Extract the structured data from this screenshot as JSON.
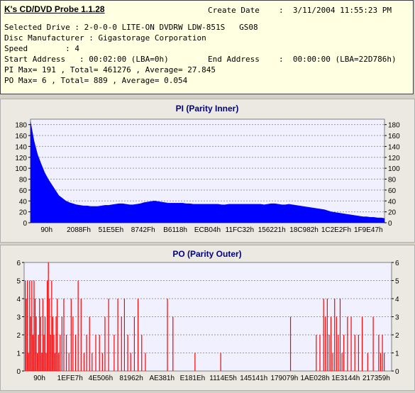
{
  "header": {
    "app_title": "K's CD/DVD Probe 1.1.28",
    "create_date_label": "Create Date",
    "create_date_value": ":  3/11/2004 11:55:23 PM",
    "line_drive": "Selected Drive : 2-0-0-0 LITE-ON DVDRW LDW-851S   GS08",
    "line_manufacturer": "Disc Manufacturer : Gigastorage Corporation",
    "line_speed": "Speed        : 4",
    "line_start": "Start Address   : 00:02:00 (LBA=0h)",
    "end_address_label": "End Address",
    "end_address_value": ":  00:00:00 (LBA=22D786h)",
    "line_pi": "PI Max= 191 , Total= 461276 , Average= 27.845",
    "line_po": "PO Max= 6 , Total= 889 , Average= 0.054"
  },
  "colors": {
    "pi_fill": "#0000ff",
    "po_fill": "#ff0000",
    "title": "#000080",
    "plot_bg": "#f0f0ff"
  },
  "chart_data": [
    {
      "type": "area",
      "title": "PI (Parity Inner)",
      "ylim": [
        0,
        190
      ],
      "y_ticks": [
        "0",
        "20",
        "40",
        "60",
        "80",
        "100",
        "120",
        "140",
        "160",
        "180"
      ],
      "x_tick_labels": [
        "90h",
        "2088Fh",
        "51E5Eh",
        "8742Fh",
        "B6118h",
        "ECB04h",
        "11FC32h",
        "156221h",
        "18C982h",
        "1C2E2Fh",
        "1F9E47h"
      ],
      "grid": true,
      "x": [
        0,
        1,
        2,
        3,
        4,
        5,
        6,
        7,
        8,
        9,
        10,
        11,
        12,
        13,
        14,
        15,
        16,
        17,
        18,
        19,
        20,
        21,
        22,
        23,
        24,
        25,
        26,
        27,
        28,
        29,
        30,
        31,
        32,
        33,
        34,
        35,
        36,
        37,
        38,
        39,
        40,
        41,
        42,
        43,
        44,
        45,
        46,
        47,
        48,
        49,
        50,
        51,
        52,
        53,
        54,
        55,
        56,
        57,
        58,
        59,
        60,
        61,
        62,
        63,
        64,
        65,
        66,
        67,
        68,
        69,
        70,
        71,
        72,
        73,
        74,
        75,
        76,
        77,
        78,
        79,
        80,
        81,
        82,
        83,
        84,
        85,
        86,
        87,
        88,
        89,
        90,
        91,
        92,
        93,
        94,
        95,
        96,
        97,
        98,
        99,
        100
      ],
      "values": [
        185,
        150,
        125,
        108,
        92,
        80,
        70,
        60,
        50,
        45,
        40,
        37,
        35,
        33,
        32,
        31,
        31,
        30,
        30,
        30,
        31,
        32,
        32,
        33,
        34,
        35,
        35,
        34,
        33,
        33,
        34,
        35,
        37,
        38,
        39,
        40,
        39,
        38,
        37,
        36,
        36,
        36,
        36,
        36,
        35,
        35,
        34,
        34,
        34,
        34,
        34,
        34,
        34,
        34,
        33,
        33,
        34,
        34,
        34,
        34,
        34,
        34,
        34,
        34,
        34,
        34,
        33,
        34,
        35,
        35,
        34,
        33,
        33,
        34,
        33,
        32,
        31,
        30,
        29,
        28,
        27,
        26,
        25,
        24,
        22,
        20,
        19,
        18,
        17,
        16,
        15,
        14,
        13,
        12,
        11,
        11,
        10,
        10,
        9,
        9,
        8
      ]
    },
    {
      "type": "bar",
      "title": "PO (Parity Outer)",
      "ylim": [
        0,
        6
      ],
      "y_ticks": [
        "0",
        "1",
        "2",
        "3",
        "4",
        "5",
        "6"
      ],
      "x_tick_labels": [
        "90h",
        "1EFE7h",
        "4E506h",
        "81962h",
        "AE381h",
        "E181Eh",
        "1114E5h",
        "145141h",
        "179079h",
        "1AE028h",
        "1E3144h",
        "217359h"
      ],
      "grid": true,
      "x": [
        0.3,
        0.6,
        0.9,
        1.2,
        1.5,
        1.8,
        2.1,
        2.4,
        2.7,
        3.0,
        3.3,
        3.6,
        3.9,
        4.2,
        4.5,
        4.8,
        5.1,
        5.4,
        5.7,
        6.0,
        6.3,
        6.6,
        6.9,
        7.2,
        7.5,
        7.8,
        8.1,
        8.4,
        8.7,
        9.0,
        9.4,
        9.8,
        10.3,
        10.8,
        11.5,
        12.2,
        12.8,
        13.3,
        14.0,
        14.7,
        15.5,
        16.3,
        17.0,
        17.8,
        18.5,
        19.5,
        20.5,
        21.3,
        22.0,
        23.0,
        24.5,
        25.5,
        26.5,
        27.3,
        28.2,
        29.0,
        30.0,
        31.0,
        32.0,
        33.0,
        39.0,
        40.5,
        46.5,
        53.5,
        72.5,
        79.5,
        80.5,
        81.5,
        82.0,
        82.5,
        83.0,
        83.5,
        84.0,
        84.5,
        85.0,
        85.5,
        86.0,
        86.5,
        87.0,
        88.0,
        89.0,
        90.0,
        91.0,
        92.0,
        93.5,
        95.0,
        96.5,
        97.0,
        97.5,
        98.0
      ],
      "values": [
        5,
        4,
        5,
        1,
        5,
        3,
        5,
        2,
        5,
        4,
        3,
        1,
        2,
        4,
        3,
        1,
        4,
        2,
        3,
        1,
        5,
        6,
        4,
        2,
        5,
        3,
        2,
        1,
        3,
        4,
        1,
        2,
        3,
        4,
        2,
        1,
        4,
        3,
        2,
        5,
        4,
        1,
        2,
        3,
        1,
        2,
        2,
        1,
        3,
        4,
        2,
        4,
        3,
        4,
        2,
        1,
        3,
        4,
        2,
        1,
        4,
        3,
        1,
        1,
        3,
        2,
        2,
        4,
        3,
        4,
        2,
        3,
        1,
        4,
        3,
        2,
        4,
        1,
        2,
        3,
        3,
        2,
        2,
        3,
        1,
        3,
        2,
        1,
        2,
        1
      ]
    }
  ]
}
